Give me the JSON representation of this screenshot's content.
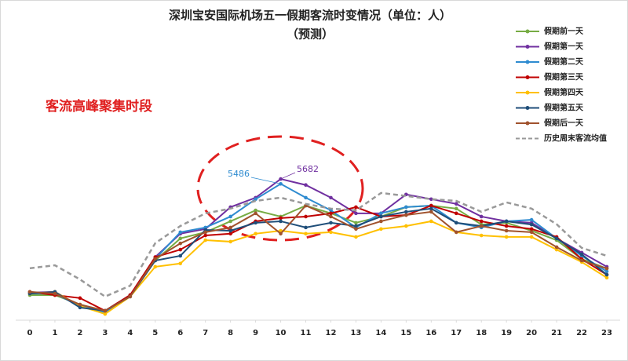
{
  "chart_data": {
    "type": "line",
    "title": "深圳宝安国际机场五一假期客流时变情况（单位：人）",
    "subtitle": "（预测）",
    "annotation": "客流高峰聚集时段",
    "x": [
      0,
      1,
      2,
      3,
      4,
      5,
      6,
      7,
      8,
      9,
      10,
      11,
      12,
      13,
      14,
      15,
      16,
      17,
      18,
      19,
      20,
      21,
      22,
      23
    ],
    "xlim": [
      0,
      23
    ],
    "xticks": [
      0,
      1,
      2,
      3,
      4,
      5,
      6,
      7,
      8,
      9,
      10,
      11,
      12,
      13,
      14,
      15,
      16,
      17,
      18,
      19,
      20,
      21,
      22,
      23
    ],
    "ylim": [
      0,
      12000
    ],
    "series": [
      {
        "name": "假期前一天",
        "color": "#77ac44",
        "values": [
          1010,
          1010,
          630,
          380,
          1010,
          2400,
          3290,
          3540,
          3980,
          4420,
          4170,
          4610,
          4300,
          3920,
          4170,
          4550,
          4610,
          4490,
          3850,
          3920,
          3600,
          3220,
          2460,
          2080
        ]
      },
      {
        "name": "假期第一天",
        "color": "#7030a0",
        "values": [
          1110,
          1140,
          570,
          380,
          1010,
          2540,
          3480,
          3670,
          4550,
          4930,
          5682,
          5440,
          4930,
          4300,
          4300,
          5060,
          4870,
          4680,
          4170,
          3980,
          3920,
          3290,
          2720,
          2150
        ]
      },
      {
        "name": "假期第二天",
        "color": "#2e8bd0",
        "values": [
          1070,
          1070,
          570,
          320,
          950,
          2470,
          3540,
          3730,
          4170,
          4870,
          5486,
          4930,
          4420,
          3730,
          4300,
          4550,
          4610,
          3920,
          3730,
          3980,
          4040,
          3290,
          2590,
          1960
        ]
      },
      {
        "name": "假期第三天",
        "color": "#c00000",
        "values": [
          1140,
          1010,
          890,
          380,
          1010,
          2540,
          2840,
          3410,
          3480,
          3980,
          4110,
          4170,
          4300,
          4550,
          4170,
          4230,
          4610,
          4300,
          3980,
          3790,
          3670,
          3350,
          2460,
          1830
        ]
      },
      {
        "name": "假期第四天",
        "color": "#ffc000",
        "values": [
          1070,
          1140,
          570,
          250,
          950,
          2150,
          2280,
          3220,
          3160,
          3480,
          3600,
          3480,
          3540,
          3350,
          3670,
          3790,
          3980,
          3540,
          3410,
          3350,
          3350,
          2840,
          2340,
          1710
        ]
      },
      {
        "name": "假期第五天",
        "color": "#1f4e79",
        "values": [
          1070,
          1140,
          510,
          380,
          950,
          2400,
          2590,
          3630,
          3600,
          3920,
          3980,
          3730,
          3920,
          3790,
          4170,
          4360,
          4490,
          3920,
          3790,
          3980,
          3850,
          3290,
          2650,
          1830
        ]
      },
      {
        "name": "假期后一天",
        "color": "#a0522d",
        "values": [
          1140,
          1070,
          630,
          380,
          950,
          2470,
          3090,
          3540,
          3730,
          4300,
          3480,
          4610,
          4170,
          3670,
          3980,
          4230,
          4360,
          3540,
          3790,
          3600,
          3540,
          2940,
          2400,
          2080
        ]
      },
      {
        "name": "历史周末客流均值",
        "color": "#999999",
        "dashed": true,
        "values": [
          2090,
          2210,
          1640,
          950,
          1390,
          3100,
          3790,
          4300,
          4490,
          4800,
          4930,
          4680,
          4490,
          4420,
          5120,
          5000,
          4870,
          4800,
          4360,
          4740,
          4490,
          3860,
          2910,
          2590
        ]
      }
    ]
  }
}
